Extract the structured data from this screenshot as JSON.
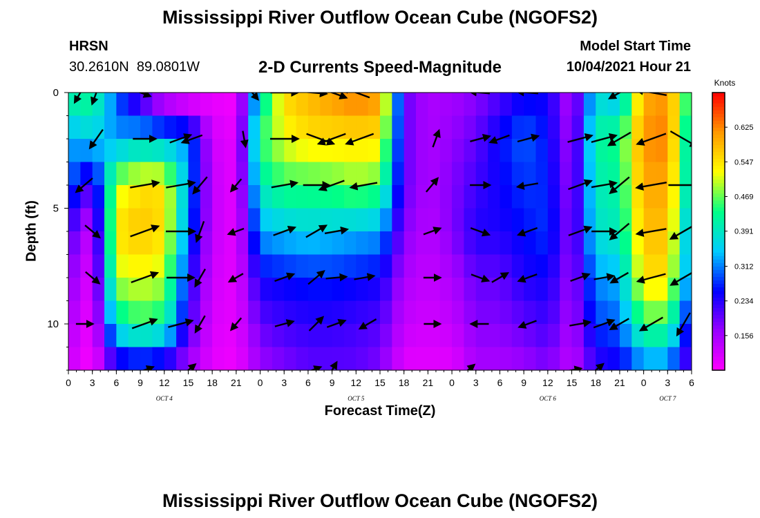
{
  "header": {
    "title": "Mississippi River Outflow Ocean Cube (NGOFS2)",
    "station_name": "HRSN",
    "station_coords": "30.2610N  89.0801W",
    "plot_subtitle": "2-D Currents Speed-Magnitude",
    "model_start_label": "Model Start Time",
    "model_start_value": "10/04/2021 Hour 21"
  },
  "footer": {
    "title": "Mississippi River Outflow Ocean Cube (NGOFS2)"
  },
  "colors": {
    "colormap": [
      "#ff00ff",
      "#9900ff",
      "#0000ff",
      "#00ccff",
      "#00ff88",
      "#ffff00",
      "#ff9900",
      "#ff0000"
    ],
    "arrow": "#000000"
  },
  "chart_data": {
    "type": "heatmap",
    "title": "2-D Currents Speed-Magnitude",
    "xlabel": "Forecast Time(Z)",
    "ylabel": "Depth (ft)",
    "x_unit": "hours from Oct 4 00Z",
    "xlim": [
      0,
      78
    ],
    "ylim": [
      12,
      0
    ],
    "x_tick_values": [
      0,
      3,
      6,
      9,
      12,
      15,
      18,
      21,
      24,
      27,
      30,
      33,
      36,
      39,
      42,
      45,
      48,
      51,
      54,
      57,
      60,
      63,
      66,
      69,
      72,
      75,
      78
    ],
    "x_tick_labels": [
      "0",
      "3",
      "6",
      "9",
      "12",
      "15",
      "18",
      "21",
      "0",
      "3",
      "6",
      "9",
      "12",
      "15",
      "18",
      "21",
      "0",
      "3",
      "6",
      "9",
      "12",
      "15",
      "18",
      "21",
      "0",
      "3",
      "6"
    ],
    "day_labels": [
      {
        "x": 12,
        "text": "OCT 4"
      },
      {
        "x": 36,
        "text": "OCT 5"
      },
      {
        "x": 60,
        "text": "OCT 6"
      },
      {
        "x": 75,
        "text": "OCT 7"
      }
    ],
    "y_tick_labels": [
      0,
      5,
      10
    ],
    "colorbar": {
      "label": "Knots",
      "range": [
        0.078,
        0.703
      ],
      "tick_values": [
        0.156,
        0.234,
        0.312,
        0.391,
        0.469,
        0.547,
        0.625
      ],
      "tick_labels": [
        "0.156",
        "0.234",
        "0.312",
        "0.391",
        "0.469",
        "0.547",
        "0.625"
      ]
    },
    "depths": [
      0.5,
      2,
      4,
      6,
      8,
      10,
      12
    ],
    "times": [
      0,
      3,
      6,
      9,
      12,
      15,
      18,
      21,
      24,
      27,
      30,
      33,
      36,
      39,
      42,
      45,
      48,
      51,
      54,
      57,
      60,
      63,
      66,
      69,
      72,
      75,
      78
    ],
    "speed_knots": [
      [
        0.4,
        0.42,
        0.3,
        0.22,
        0.15,
        0.12,
        0.1,
        0.09,
        0.4,
        0.55,
        0.58,
        0.6,
        0.62,
        0.6,
        0.2,
        0.15,
        0.16,
        0.18,
        0.22,
        0.26,
        0.25,
        0.14,
        0.38,
        0.36,
        0.6,
        0.62,
        0.4
      ],
      [
        0.33,
        0.36,
        0.32,
        0.35,
        0.33,
        0.32,
        0.12,
        0.1,
        0.45,
        0.52,
        0.55,
        0.55,
        0.55,
        0.55,
        0.2,
        0.15,
        0.17,
        0.2,
        0.26,
        0.3,
        0.26,
        0.15,
        0.42,
        0.44,
        0.62,
        0.63,
        0.35
      ],
      [
        0.3,
        0.2,
        0.5,
        0.55,
        0.55,
        0.32,
        0.13,
        0.1,
        0.4,
        0.45,
        0.45,
        0.46,
        0.48,
        0.46,
        0.2,
        0.15,
        0.18,
        0.22,
        0.25,
        0.28,
        0.27,
        0.16,
        0.4,
        0.42,
        0.6,
        0.6,
        0.35
      ],
      [
        0.22,
        0.12,
        0.55,
        0.58,
        0.55,
        0.3,
        0.13,
        0.1,
        0.33,
        0.35,
        0.36,
        0.35,
        0.34,
        0.33,
        0.18,
        0.14,
        0.18,
        0.24,
        0.24,
        0.26,
        0.28,
        0.17,
        0.38,
        0.4,
        0.58,
        0.58,
        0.3
      ],
      [
        0.18,
        0.1,
        0.5,
        0.52,
        0.5,
        0.25,
        0.12,
        0.1,
        0.25,
        0.26,
        0.27,
        0.27,
        0.26,
        0.25,
        0.15,
        0.13,
        0.15,
        0.2,
        0.2,
        0.24,
        0.25,
        0.16,
        0.32,
        0.34,
        0.55,
        0.55,
        0.28
      ],
      [
        0.15,
        0.09,
        0.4,
        0.45,
        0.42,
        0.22,
        0.11,
        0.1,
        0.2,
        0.22,
        0.23,
        0.23,
        0.22,
        0.21,
        0.13,
        0.12,
        0.13,
        0.18,
        0.18,
        0.2,
        0.22,
        0.15,
        0.28,
        0.3,
        0.45,
        0.45,
        0.22
      ],
      [
        0.12,
        0.08,
        0.2,
        0.22,
        0.2,
        0.15,
        0.1,
        0.09,
        0.16,
        0.18,
        0.2,
        0.2,
        0.2,
        0.18,
        0.1,
        0.1,
        0.1,
        0.15,
        0.15,
        0.16,
        0.18,
        0.13,
        0.22,
        0.24,
        0.3,
        0.3,
        0.18
      ]
    ],
    "current_vectors": [
      {
        "t": 1.5,
        "depth": 0,
        "dir_deg": 210,
        "speed": 0.35
      },
      {
        "t": 3.5,
        "depth": 0,
        "dir_deg": 200,
        "speed": 0.4
      },
      {
        "t": 9,
        "depth": 0,
        "dir_deg": 110,
        "speed": 0.3
      },
      {
        "t": 23,
        "depth": 0,
        "dir_deg": 140,
        "speed": 0.2
      },
      {
        "t": 27,
        "depth": 0,
        "dir_deg": 90,
        "speed": 0.5
      },
      {
        "t": 30.5,
        "depth": 0,
        "dir_deg": 95,
        "speed": 0.55
      },
      {
        "t": 33,
        "depth": 0,
        "dir_deg": 110,
        "speed": 0.6
      },
      {
        "t": 36,
        "depth": 0,
        "dir_deg": 290,
        "speed": 0.55
      },
      {
        "t": 51.5,
        "depth": 0,
        "dir_deg": 275,
        "speed": 0.25
      },
      {
        "t": 57.5,
        "depth": 0,
        "dir_deg": 275,
        "speed": 0.28
      },
      {
        "t": 69,
        "depth": 0,
        "dir_deg": 240,
        "speed": 0.38
      },
      {
        "t": 73,
        "depth": 0,
        "dir_deg": 280,
        "speed": 0.6
      },
      {
        "t": 3.5,
        "depth": 2,
        "dir_deg": 215,
        "speed": 0.34
      },
      {
        "t": 9.5,
        "depth": 2,
        "dir_deg": 90,
        "speed": 0.35
      },
      {
        "t": 14,
        "depth": 2,
        "dir_deg": 70,
        "speed": 0.33
      },
      {
        "t": 15.5,
        "depth": 2,
        "dir_deg": 250,
        "speed": 0.3
      },
      {
        "t": 22,
        "depth": 2,
        "dir_deg": 170,
        "speed": 0.12
      },
      {
        "t": 27,
        "depth": 2,
        "dir_deg": 90,
        "speed": 0.52
      },
      {
        "t": 31.5,
        "depth": 2,
        "dir_deg": 110,
        "speed": 0.55
      },
      {
        "t": 33,
        "depth": 2,
        "dir_deg": 250,
        "speed": 0.55
      },
      {
        "t": 36.5,
        "depth": 2,
        "dir_deg": 250,
        "speed": 0.55
      },
      {
        "t": 46,
        "depth": 2,
        "dir_deg": 20,
        "speed": 0.18
      },
      {
        "t": 51.5,
        "depth": 2,
        "dir_deg": 75,
        "speed": 0.26
      },
      {
        "t": 54,
        "depth": 2,
        "dir_deg": 250,
        "speed": 0.27
      },
      {
        "t": 57.5,
        "depth": 2,
        "dir_deg": 75,
        "speed": 0.3
      },
      {
        "t": 64,
        "depth": 2,
        "dir_deg": 75,
        "speed": 0.42
      },
      {
        "t": 67,
        "depth": 2,
        "dir_deg": 75,
        "speed": 0.44
      },
      {
        "t": 69,
        "depth": 2,
        "dir_deg": 240,
        "speed": 0.44
      },
      {
        "t": 73,
        "depth": 2,
        "dir_deg": 250,
        "speed": 0.62
      },
      {
        "t": 77,
        "depth": 2,
        "dir_deg": 120,
        "speed": 0.63
      },
      {
        "t": 2,
        "depth": 4,
        "dir_deg": 230,
        "speed": 0.3
      },
      {
        "t": 9.5,
        "depth": 4,
        "dir_deg": 80,
        "speed": 0.55
      },
      {
        "t": 14,
        "depth": 4,
        "dir_deg": 80,
        "speed": 0.55
      },
      {
        "t": 16.5,
        "depth": 4,
        "dir_deg": 220,
        "speed": 0.3
      },
      {
        "t": 21,
        "depth": 4,
        "dir_deg": 220,
        "speed": 0.12
      },
      {
        "t": 27,
        "depth": 4,
        "dir_deg": 80,
        "speed": 0.45
      },
      {
        "t": 31,
        "depth": 4,
        "dir_deg": 90,
        "speed": 0.45
      },
      {
        "t": 33,
        "depth": 4,
        "dir_deg": 250,
        "speed": 0.46
      },
      {
        "t": 37,
        "depth": 4,
        "dir_deg": 260,
        "speed": 0.48
      },
      {
        "t": 45.5,
        "depth": 4,
        "dir_deg": 40,
        "speed": 0.18
      },
      {
        "t": 51.5,
        "depth": 4,
        "dir_deg": 90,
        "speed": 0.25
      },
      {
        "t": 57.5,
        "depth": 4,
        "dir_deg": 260,
        "speed": 0.28
      },
      {
        "t": 64,
        "depth": 4,
        "dir_deg": 70,
        "speed": 0.4
      },
      {
        "t": 67,
        "depth": 4,
        "dir_deg": 80,
        "speed": 0.42
      },
      {
        "t": 69,
        "depth": 4,
        "dir_deg": 230,
        "speed": 0.42
      },
      {
        "t": 73,
        "depth": 4,
        "dir_deg": 260,
        "speed": 0.6
      },
      {
        "t": 77,
        "depth": 4,
        "dir_deg": 90,
        "speed": 0.6
      },
      {
        "t": 3,
        "depth": 6,
        "dir_deg": 130,
        "speed": 0.22
      },
      {
        "t": 9.5,
        "depth": 6,
        "dir_deg": 70,
        "speed": 0.58
      },
      {
        "t": 14,
        "depth": 6,
        "dir_deg": 90,
        "speed": 0.55
      },
      {
        "t": 16.5,
        "depth": 6,
        "dir_deg": 200,
        "speed": 0.3
      },
      {
        "t": 21,
        "depth": 6,
        "dir_deg": 250,
        "speed": 0.13
      },
      {
        "t": 27,
        "depth": 6,
        "dir_deg": 70,
        "speed": 0.35
      },
      {
        "t": 31,
        "depth": 6,
        "dir_deg": 60,
        "speed": 0.36
      },
      {
        "t": 33.5,
        "depth": 6,
        "dir_deg": 80,
        "speed": 0.35
      },
      {
        "t": 45.5,
        "depth": 6,
        "dir_deg": 70,
        "speed": 0.18
      },
      {
        "t": 51.5,
        "depth": 6,
        "dir_deg": 110,
        "speed": 0.24
      },
      {
        "t": 57.5,
        "depth": 6,
        "dir_deg": 250,
        "speed": 0.26
      },
      {
        "t": 64,
        "depth": 6,
        "dir_deg": 70,
        "speed": 0.38
      },
      {
        "t": 67,
        "depth": 6,
        "dir_deg": 90,
        "speed": 0.4
      },
      {
        "t": 69,
        "depth": 6,
        "dir_deg": 230,
        "speed": 0.4
      },
      {
        "t": 73,
        "depth": 6,
        "dir_deg": 260,
        "speed": 0.58
      },
      {
        "t": 77,
        "depth": 6,
        "dir_deg": 240,
        "speed": 0.58
      },
      {
        "t": 3,
        "depth": 8,
        "dir_deg": 130,
        "speed": 0.18
      },
      {
        "t": 9.5,
        "depth": 8,
        "dir_deg": 70,
        "speed": 0.52
      },
      {
        "t": 14,
        "depth": 8,
        "dir_deg": 90,
        "speed": 0.5
      },
      {
        "t": 16.5,
        "depth": 8,
        "dir_deg": 210,
        "speed": 0.25
      },
      {
        "t": 21,
        "depth": 8,
        "dir_deg": 240,
        "speed": 0.12
      },
      {
        "t": 27,
        "depth": 8,
        "dir_deg": 70,
        "speed": 0.26
      },
      {
        "t": 31,
        "depth": 8,
        "dir_deg": 50,
        "speed": 0.27
      },
      {
        "t": 33.5,
        "depth": 8,
        "dir_deg": 85,
        "speed": 0.27
      },
      {
        "t": 37,
        "depth": 8,
        "dir_deg": 80,
        "speed": 0.26
      },
      {
        "t": 45.5,
        "depth": 8,
        "dir_deg": 90,
        "speed": 0.15
      },
      {
        "t": 51.5,
        "depth": 8,
        "dir_deg": 110,
        "speed": 0.2
      },
      {
        "t": 54,
        "depth": 8,
        "dir_deg": 60,
        "speed": 0.2
      },
      {
        "t": 57.5,
        "depth": 8,
        "dir_deg": 250,
        "speed": 0.24
      },
      {
        "t": 64,
        "depth": 8,
        "dir_deg": 70,
        "speed": 0.25
      },
      {
        "t": 67,
        "depth": 8,
        "dir_deg": 80,
        "speed": 0.25
      },
      {
        "t": 69,
        "depth": 8,
        "dir_deg": 240,
        "speed": 0.25
      },
      {
        "t": 73,
        "depth": 8,
        "dir_deg": 255,
        "speed": 0.55
      },
      {
        "t": 77,
        "depth": 8,
        "dir_deg": 240,
        "speed": 0.55
      },
      {
        "t": 2,
        "depth": 10,
        "dir_deg": 90,
        "speed": 0.15
      },
      {
        "t": 9.5,
        "depth": 10,
        "dir_deg": 70,
        "speed": 0.45
      },
      {
        "t": 14,
        "depth": 10,
        "dir_deg": 75,
        "speed": 0.42
      },
      {
        "t": 16.5,
        "depth": 10,
        "dir_deg": 210,
        "speed": 0.22
      },
      {
        "t": 21,
        "depth": 10,
        "dir_deg": 220,
        "speed": 0.11
      },
      {
        "t": 27,
        "depth": 10,
        "dir_deg": 75,
        "speed": 0.22
      },
      {
        "t": 31,
        "depth": 10,
        "dir_deg": 45,
        "speed": 0.23
      },
      {
        "t": 33.5,
        "depth": 10,
        "dir_deg": 70,
        "speed": 0.23
      },
      {
        "t": 37.5,
        "depth": 10,
        "dir_deg": 240,
        "speed": 0.22
      },
      {
        "t": 45.5,
        "depth": 10,
        "dir_deg": 90,
        "speed": 0.13
      },
      {
        "t": 51.5,
        "depth": 10,
        "dir_deg": 270,
        "speed": 0.18
      },
      {
        "t": 57.5,
        "depth": 10,
        "dir_deg": 250,
        "speed": 0.2
      },
      {
        "t": 64,
        "depth": 10,
        "dir_deg": 80,
        "speed": 0.28
      },
      {
        "t": 67,
        "depth": 10,
        "dir_deg": 70,
        "speed": 0.3
      },
      {
        "t": 69,
        "depth": 10,
        "dir_deg": 240,
        "speed": 0.3
      },
      {
        "t": 73,
        "depth": 10,
        "dir_deg": 240,
        "speed": 0.45
      },
      {
        "t": 77,
        "depth": 10,
        "dir_deg": 210,
        "speed": 0.45
      },
      {
        "t": 9.5,
        "depth": 12,
        "dir_deg": 70,
        "speed": 0.22
      },
      {
        "t": 15,
        "depth": 12,
        "dir_deg": 50,
        "speed": 0.2
      },
      {
        "t": 30.5,
        "depth": 12,
        "dir_deg": 70,
        "speed": 0.2
      },
      {
        "t": 33,
        "depth": 12,
        "dir_deg": 30,
        "speed": 0.2
      },
      {
        "t": 50,
        "depth": 12,
        "dir_deg": 50,
        "speed": 0.15
      },
      {
        "t": 63,
        "depth": 12,
        "dir_deg": 80,
        "speed": 0.22
      },
      {
        "t": 66,
        "depth": 12,
        "dir_deg": 50,
        "speed": 0.24
      }
    ]
  }
}
